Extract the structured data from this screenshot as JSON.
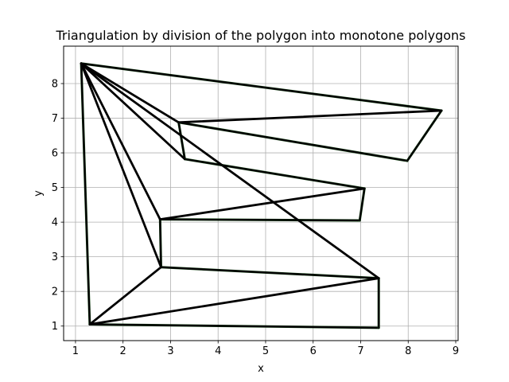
{
  "chart_data": {
    "type": "line",
    "title": "Triangulation by division of the polygon into monotone polygons",
    "xlabel": "x",
    "ylabel": "y",
    "xlim": [
      0.75,
      9.05
    ],
    "ylim": [
      0.58,
      9.08
    ],
    "xticks": [
      1,
      2,
      3,
      4,
      5,
      6,
      7,
      8,
      9
    ],
    "yticks": [
      1,
      2,
      3,
      4,
      5,
      6,
      7,
      8
    ],
    "grid": true,
    "colors": {
      "grid": "#b0b0b0",
      "edges": "#000000",
      "polygon_outline": "#1a4d1a",
      "background": "#ffffff"
    },
    "polygon": [
      [
        1.12,
        8.58
      ],
      [
        1.3,
        1.05
      ],
      [
        7.38,
        0.95
      ],
      [
        7.38,
        2.38
      ],
      [
        2.8,
        2.7
      ],
      [
        2.78,
        4.08
      ],
      [
        6.98,
        4.05
      ],
      [
        7.08,
        4.97
      ],
      [
        3.3,
        5.82
      ],
      [
        3.17,
        6.88
      ],
      [
        7.98,
        5.77
      ],
      [
        8.7,
        7.22
      ]
    ],
    "diagonals": [
      [
        [
          1.12,
          8.58
        ],
        [
          7.38,
          2.38
        ]
      ],
      [
        [
          1.12,
          8.58
        ],
        [
          2.8,
          2.7
        ]
      ],
      [
        [
          1.12,
          8.58
        ],
        [
          2.78,
          4.08
        ]
      ],
      [
        [
          1.12,
          8.58
        ],
        [
          3.3,
          5.82
        ]
      ],
      [
        [
          1.12,
          8.58
        ],
        [
          3.17,
          6.88
        ]
      ],
      [
        [
          1.3,
          1.05
        ],
        [
          7.38,
          2.38
        ]
      ],
      [
        [
          1.3,
          1.05
        ],
        [
          2.8,
          2.7
        ]
      ],
      [
        [
          2.78,
          4.08
        ],
        [
          7.08,
          4.97
        ]
      ],
      [
        [
          3.17,
          6.88
        ],
        [
          8.7,
          7.22
        ]
      ]
    ]
  }
}
